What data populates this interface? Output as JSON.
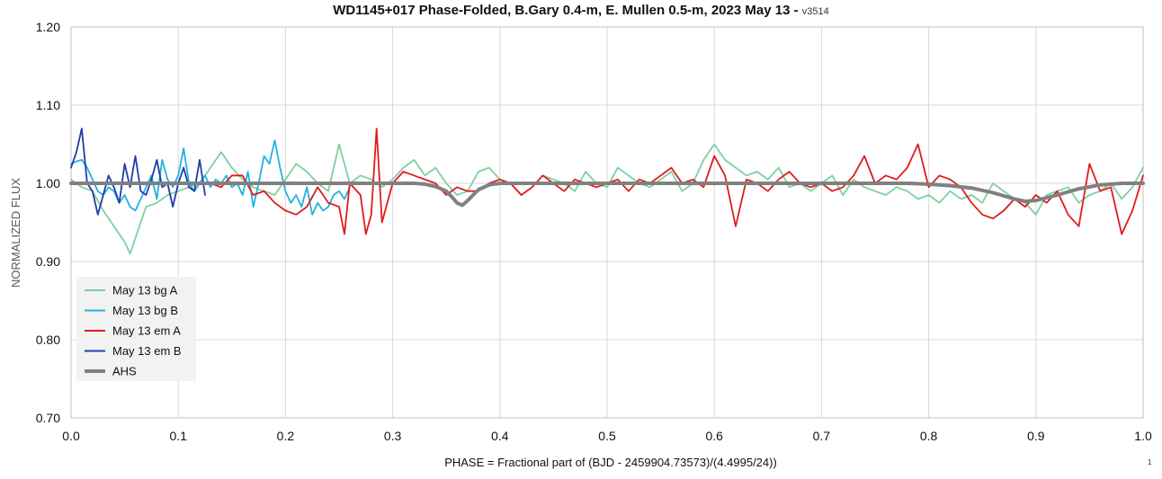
{
  "chart_data": {
    "type": "line",
    "title": "WD1145+017 Phase-Folded, B.Gary 0.4-m, E. Mullen 0.5-m, 2023 May 13 -",
    "title_version": "v3514",
    "xlabel": "PHASE = Fractional part of (BJD - 2459904.73573)/(4.4995/24))",
    "ylabel": "NORMALIZED FLUX",
    "footnote": "1",
    "xlim": [
      0.0,
      1.0
    ],
    "ylim": [
      0.7,
      1.2
    ],
    "xticks": [
      "0.0",
      "0.1",
      "0.2",
      "0.3",
      "0.4",
      "0.5",
      "0.6",
      "0.7",
      "0.8",
      "0.9",
      "1.0"
    ],
    "yticks": [
      "0.70",
      "0.80",
      "0.90",
      "1.00",
      "1.10",
      "1.20"
    ],
    "grid": true,
    "legend_position": "lower-left",
    "series": [
      {
        "name": "May 13 bg A",
        "color": "#7fcf9f",
        "x": [
          0.0,
          0.01,
          0.02,
          0.03,
          0.04,
          0.05,
          0.055,
          0.06,
          0.07,
          0.08,
          0.09,
          0.1,
          0.11,
          0.12,
          0.13,
          0.14,
          0.15,
          0.16,
          0.17,
          0.18,
          0.19,
          0.2,
          0.21,
          0.22,
          0.23,
          0.24,
          0.25,
          0.26,
          0.27,
          0.28,
          0.29,
          0.3,
          0.31,
          0.32,
          0.33,
          0.34,
          0.35,
          0.36,
          0.37,
          0.38,
          0.39,
          0.4,
          0.41,
          0.42,
          0.43,
          0.44,
          0.45,
          0.46,
          0.47,
          0.48,
          0.49,
          0.5,
          0.51,
          0.52,
          0.53,
          0.54,
          0.55,
          0.56,
          0.57,
          0.58,
          0.59,
          0.6,
          0.61,
          0.62,
          0.63,
          0.64,
          0.65,
          0.66,
          0.67,
          0.68,
          0.69,
          0.7,
          0.71,
          0.72,
          0.73,
          0.74,
          0.75,
          0.76,
          0.77,
          0.78,
          0.79,
          0.8,
          0.81,
          0.82,
          0.83,
          0.84,
          0.85,
          0.86,
          0.87,
          0.88,
          0.89,
          0.9,
          0.91,
          0.92,
          0.93,
          0.94,
          0.95,
          0.96,
          0.97,
          0.98,
          0.99,
          1.0
        ],
        "y": [
          1.005,
          0.995,
          0.99,
          0.965,
          0.945,
          0.925,
          0.91,
          0.93,
          0.97,
          0.975,
          0.985,
          0.99,
          0.995,
          1.0,
          1.02,
          1.04,
          1.02,
          1.005,
          0.995,
          0.99,
          0.985,
          1.005,
          1.025,
          1.015,
          1.0,
          0.99,
          1.05,
          1.0,
          1.01,
          1.005,
          0.995,
          1.005,
          1.02,
          1.03,
          1.01,
          1.02,
          1.0,
          0.985,
          0.99,
          1.015,
          1.02,
          1.005,
          1.0,
          0.985,
          0.995,
          1.01,
          1.005,
          1.0,
          0.99,
          1.015,
          1.0,
          0.995,
          1.02,
          1.01,
          1.0,
          0.995,
          1.005,
          1.015,
          0.99,
          1.0,
          1.03,
          1.05,
          1.03,
          1.02,
          1.01,
          1.015,
          1.005,
          1.02,
          0.995,
          1.0,
          0.99,
          1.0,
          1.01,
          0.985,
          1.005,
          0.995,
          0.99,
          0.985,
          0.995,
          0.99,
          0.98,
          0.985,
          0.975,
          0.99,
          0.98,
          0.985,
          0.975,
          1.0,
          0.99,
          0.98,
          0.975,
          0.96,
          0.985,
          0.99,
          0.995,
          0.975,
          0.985,
          0.99,
          1.0,
          0.98,
          0.995,
          1.02
        ]
      },
      {
        "name": "May 13 bg B",
        "color": "#25b1e0",
        "x": [
          0.0,
          0.005,
          0.01,
          0.015,
          0.02,
          0.025,
          0.03,
          0.035,
          0.04,
          0.045,
          0.05,
          0.055,
          0.06,
          0.065,
          0.07,
          0.075,
          0.08,
          0.085,
          0.09,
          0.095,
          0.1,
          0.105,
          0.11,
          0.115,
          0.12,
          0.125,
          0.13,
          0.135,
          0.14,
          0.145,
          0.15,
          0.155,
          0.16,
          0.165,
          0.17,
          0.175,
          0.18,
          0.185,
          0.19,
          0.195,
          0.2,
          0.205,
          0.21,
          0.215,
          0.22,
          0.225,
          0.23,
          0.235,
          0.24,
          0.245,
          0.25,
          0.255,
          0.26
        ],
        "y": [
          1.025,
          1.028,
          1.03,
          1.02,
          1.005,
          0.99,
          0.985,
          0.995,
          0.99,
          0.975,
          0.985,
          0.97,
          0.965,
          0.98,
          0.995,
          1.01,
          0.98,
          1.03,
          1.005,
          0.995,
          1.01,
          1.045,
          1.0,
          0.99,
          1.0,
          1.01,
          0.995,
          1.005,
          1.0,
          1.01,
          0.995,
          1.0,
          0.985,
          1.015,
          0.97,
          1.0,
          1.035,
          1.025,
          1.055,
          1.02,
          0.99,
          0.975,
          0.985,
          0.97,
          0.995,
          0.96,
          0.975,
          0.965,
          0.97,
          0.985,
          0.99,
          0.98,
          0.995
        ]
      },
      {
        "name": "May 13 em A",
        "color": "#e01b1b",
        "x": [
          0.13,
          0.14,
          0.15,
          0.16,
          0.17,
          0.18,
          0.19,
          0.2,
          0.21,
          0.22,
          0.23,
          0.24,
          0.25,
          0.255,
          0.26,
          0.27,
          0.275,
          0.28,
          0.285,
          0.29,
          0.3,
          0.31,
          0.32,
          0.33,
          0.34,
          0.35,
          0.36,
          0.37,
          0.38,
          0.39,
          0.4,
          0.41,
          0.42,
          0.43,
          0.44,
          0.45,
          0.46,
          0.47,
          0.48,
          0.49,
          0.5,
          0.51,
          0.52,
          0.53,
          0.54,
          0.55,
          0.56,
          0.57,
          0.58,
          0.59,
          0.6,
          0.61,
          0.62,
          0.63,
          0.64,
          0.65,
          0.66,
          0.67,
          0.68,
          0.69,
          0.7,
          0.71,
          0.72,
          0.73,
          0.74,
          0.75,
          0.76,
          0.77,
          0.78,
          0.79,
          0.8,
          0.81,
          0.82,
          0.83,
          0.84,
          0.85,
          0.86,
          0.87,
          0.88,
          0.89,
          0.9,
          0.91,
          0.92,
          0.93,
          0.94,
          0.95,
          0.96,
          0.97,
          0.98,
          0.99,
          1.0
        ],
        "y": [
          1.0,
          0.995,
          1.01,
          1.01,
          0.985,
          0.99,
          0.975,
          0.965,
          0.96,
          0.97,
          0.995,
          0.975,
          0.97,
          0.935,
          1.0,
          0.985,
          0.935,
          0.96,
          1.07,
          0.95,
          1.0,
          1.015,
          1.01,
          1.005,
          1.0,
          0.985,
          0.995,
          0.99,
          0.99,
          1.0,
          1.005,
          1.0,
          0.985,
          0.995,
          1.01,
          1.0,
          0.99,
          1.005,
          1.0,
          0.995,
          1.0,
          1.005,
          0.99,
          1.005,
          1.0,
          1.01,
          1.02,
          1.0,
          1.005,
          0.995,
          1.035,
          1.01,
          0.945,
          1.005,
          1.0,
          0.99,
          1.005,
          1.015,
          1.0,
          0.995,
          1.0,
          0.99,
          0.995,
          1.01,
          1.035,
          1.0,
          1.01,
          1.005,
          1.02,
          1.05,
          0.995,
          1.01,
          1.005,
          0.995,
          0.975,
          0.96,
          0.955,
          0.965,
          0.98,
          0.97,
          0.985,
          0.975,
          0.99,
          0.96,
          0.945,
          1.025,
          0.99,
          0.995,
          0.935,
          0.965,
          1.01
        ]
      },
      {
        "name": "May 13 em B",
        "color": "#1f3ea8",
        "x": [
          0.0,
          0.005,
          0.01,
          0.015,
          0.02,
          0.025,
          0.03,
          0.035,
          0.04,
          0.045,
          0.05,
          0.055,
          0.06,
          0.065,
          0.07,
          0.075,
          0.08,
          0.085,
          0.09,
          0.095,
          0.1,
          0.105,
          0.11,
          0.115,
          0.12,
          0.125
        ],
        "y": [
          1.02,
          1.04,
          1.07,
          1.0,
          0.99,
          0.96,
          0.985,
          1.01,
          0.995,
          0.975,
          1.025,
          0.995,
          1.035,
          0.99,
          0.985,
          1.005,
          1.03,
          0.995,
          1.0,
          0.97,
          1.0,
          1.02,
          0.995,
          0.99,
          1.03,
          0.985
        ]
      },
      {
        "name": "AHS",
        "color": "#808080",
        "x": [
          0.0,
          0.32,
          0.33,
          0.34,
          0.35,
          0.355,
          0.36,
          0.365,
          0.37,
          0.38,
          0.39,
          0.4,
          0.78,
          0.8,
          0.82,
          0.84,
          0.86,
          0.88,
          0.89,
          0.9,
          0.92,
          0.94,
          0.96,
          0.98,
          1.0
        ],
        "y": [
          1.0,
          1.0,
          0.999,
          0.996,
          0.99,
          0.983,
          0.975,
          0.972,
          0.978,
          0.992,
          0.998,
          1.0,
          1.0,
          0.999,
          0.997,
          0.994,
          0.988,
          0.98,
          0.977,
          0.978,
          0.985,
          0.993,
          0.998,
          1.0,
          1.0
        ]
      }
    ]
  }
}
